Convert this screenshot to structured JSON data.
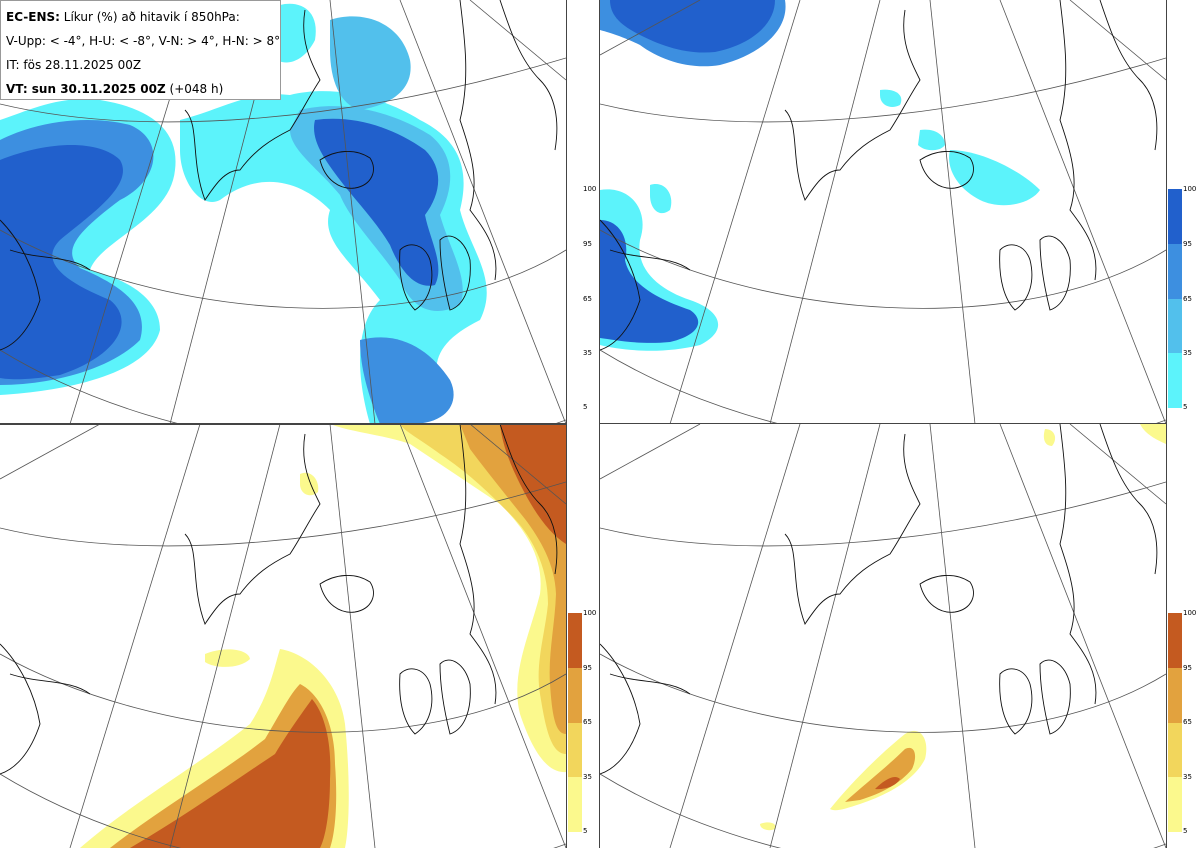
{
  "header": {
    "model_label": "EC-ENS:",
    "title": "Líkur (%) að hitavik í 850hPa:",
    "thresholds": "V-Upp: < -4°, H-U: < -8°, V-N: > 4°, H-N: > 8°",
    "init_time": "IT: fös 28.11.2025 00Z",
    "valid_label": "VT: sun 30.11.2025 00Z",
    "lead_time": "(+048 h)"
  },
  "colorbar": {
    "ticks": [
      "100",
      "95",
      "65",
      "35",
      "5"
    ],
    "cold_colors": [
      "#5cf3fb",
      "#52c0ec",
      "#3d8fe0",
      "#2160cc"
    ],
    "warm_colors": [
      "#fbf98d",
      "#f2d65c",
      "#e2a23e",
      "#c45a20"
    ]
  },
  "panels": [
    {
      "id": "upper-left",
      "scheme": "cold",
      "threshold": "< -4°"
    },
    {
      "id": "upper-right",
      "scheme": "cold",
      "threshold": "< -8°"
    },
    {
      "id": "lower-left",
      "scheme": "warm",
      "threshold": "> 4°"
    },
    {
      "id": "lower-right",
      "scheme": "warm",
      "threshold": "> 8°"
    }
  ]
}
